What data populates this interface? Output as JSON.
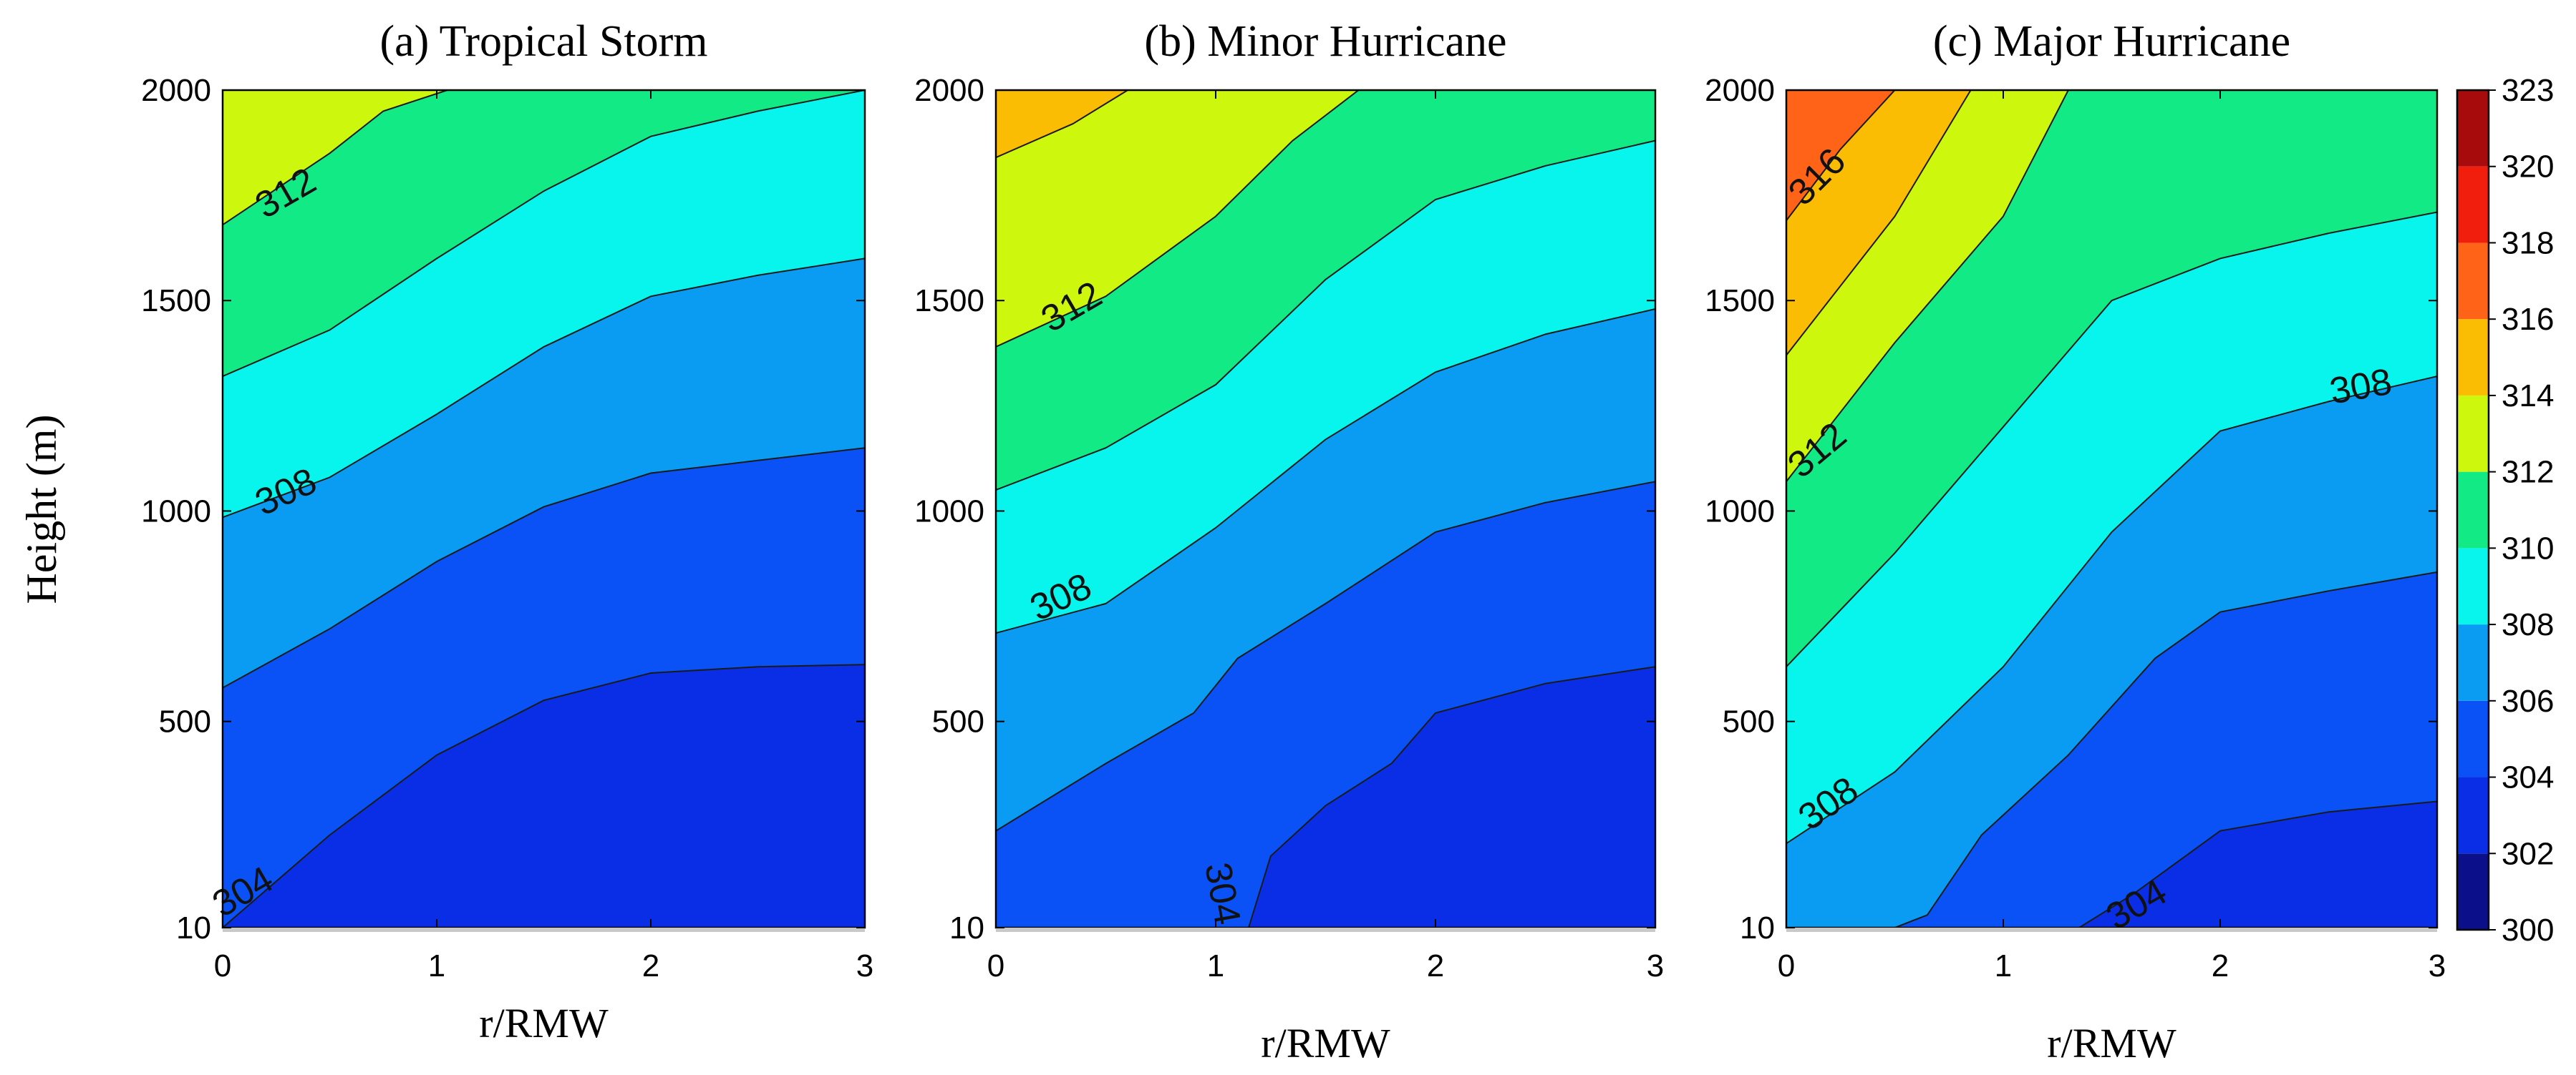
{
  "figure": {
    "ylabel": "Height (m)",
    "colorbar": {
      "ticks": [
        300,
        302,
        304,
        306,
        308,
        310,
        312,
        314,
        316,
        318,
        320,
        323
      ],
      "bins": [
        {
          "lo": 300,
          "hi": 302,
          "color": "#0c0f8a"
        },
        {
          "lo": 302,
          "hi": 304,
          "color": "#0a2ee6"
        },
        {
          "lo": 304,
          "hi": 306,
          "color": "#0a52f5"
        },
        {
          "lo": 306,
          "hi": 308,
          "color": "#0a9cf3"
        },
        {
          "lo": 308,
          "hi": 310,
          "color": "#07f5ec"
        },
        {
          "lo": 310,
          "hi": 312,
          "color": "#12ea86"
        },
        {
          "lo": 312,
          "hi": 314,
          "color": "#cdf80d"
        },
        {
          "lo": 314,
          "hi": 316,
          "color": "#fbbd03"
        },
        {
          "lo": 316,
          "hi": 318,
          "color": "#ff6318"
        },
        {
          "lo": 318,
          "hi": 320,
          "color": "#f21e0d"
        },
        {
          "lo": 320,
          "hi": 323,
          "color": "#a80b0b"
        }
      ]
    }
  },
  "chart_data": [
    {
      "type": "contour",
      "title": "(a) Tropical Storm",
      "xlabel": "r/RMW",
      "ylabel": "Height (m)",
      "xlim": [
        0,
        3
      ],
      "ylim": [
        10,
        2000
      ],
      "xticks": [
        "0",
        "1",
        "2",
        "3"
      ],
      "yticks": [
        "10",
        "500",
        "1000",
        "1500",
        "2000"
      ],
      "base_level": 302,
      "contours": [
        {
          "level": 304,
          "points": [
            [
              0,
              10
            ],
            [
              0.5,
              230
            ],
            [
              1,
              420
            ],
            [
              1.5,
              550
            ],
            [
              2,
              615
            ],
            [
              2.5,
              630
            ],
            [
              3,
              635
            ]
          ]
        },
        {
          "level": 306,
          "points": [
            [
              0,
              580
            ],
            [
              0.5,
              720
            ],
            [
              1,
              880
            ],
            [
              1.5,
              1010
            ],
            [
              2,
              1090
            ],
            [
              2.5,
              1120
            ],
            [
              3,
              1150
            ]
          ]
        },
        {
          "level": 308,
          "points": [
            [
              0,
              985
            ],
            [
              0.5,
              1080
            ],
            [
              1,
              1230
            ],
            [
              1.5,
              1390
            ],
            [
              2,
              1510
            ],
            [
              2.5,
              1560
            ],
            [
              3,
              1600
            ]
          ]
        },
        {
          "level": 310,
          "points": [
            [
              0,
              1320
            ],
            [
              0.5,
              1430
            ],
            [
              1,
              1600
            ],
            [
              1.5,
              1760
            ],
            [
              2,
              1890
            ],
            [
              2.5,
              1950
            ],
            [
              3,
              2000
            ]
          ]
        },
        {
          "level": 312,
          "points": [
            [
              0,
              1680
            ],
            [
              0.5,
              1850
            ],
            [
              0.75,
              1950
            ],
            [
              1.05,
              2000
            ]
          ]
        }
      ],
      "labels": [
        {
          "text": "304",
          "x": 0.1,
          "y": 90,
          "angle": -30
        },
        {
          "text": "308",
          "x": 0.3,
          "y": 1040,
          "angle": -25
        },
        {
          "text": "312",
          "x": 0.3,
          "y": 1750,
          "angle": -30
        }
      ]
    },
    {
      "type": "contour",
      "title": "(b) Minor Hurricane",
      "xlabel": "r/RMW",
      "ylabel": "Height (m)",
      "xlim": [
        0,
        3
      ],
      "ylim": [
        10,
        2000
      ],
      "xticks": [
        "0",
        "1",
        "2",
        "3"
      ],
      "yticks": [
        "10",
        "500",
        "1000",
        "1500",
        "2000"
      ],
      "base_level": 302,
      "contours": [
        {
          "level": 304,
          "points": [
            [
              1.15,
              10
            ],
            [
              1.25,
              180
            ],
            [
              1.5,
              300
            ],
            [
              1.8,
              400
            ],
            [
              2,
              520
            ],
            [
              2.5,
              590
            ],
            [
              3,
              630
            ]
          ]
        },
        {
          "level": 306,
          "points": [
            [
              0,
              240
            ],
            [
              0.5,
              400
            ],
            [
              0.9,
              520
            ],
            [
              1.1,
              650
            ],
            [
              1.5,
              780
            ],
            [
              2,
              950
            ],
            [
              2.5,
              1020
            ],
            [
              3,
              1070
            ]
          ]
        },
        {
          "level": 308,
          "points": [
            [
              0,
              710
            ],
            [
              0.5,
              780
            ],
            [
              1,
              960
            ],
            [
              1.5,
              1170
            ],
            [
              2,
              1330
            ],
            [
              2.5,
              1420
            ],
            [
              3,
              1480
            ]
          ]
        },
        {
          "level": 310,
          "points": [
            [
              0,
              1050
            ],
            [
              0.5,
              1150
            ],
            [
              1,
              1300
            ],
            [
              1.5,
              1550
            ],
            [
              2,
              1740
            ],
            [
              2.5,
              1820
            ],
            [
              3,
              1880
            ]
          ]
        },
        {
          "level": 312,
          "points": [
            [
              0,
              1390
            ],
            [
              0.5,
              1510
            ],
            [
              1,
              1700
            ],
            [
              1.35,
              1880
            ],
            [
              1.65,
              2000
            ]
          ]
        },
        {
          "level": 314,
          "points": [
            [
              0,
              1840
            ],
            [
              0.35,
              1920
            ],
            [
              0.6,
              2000
            ]
          ]
        }
      ],
      "labels": [
        {
          "text": "304",
          "x": 1.02,
          "y": 90,
          "angle": 80
        },
        {
          "text": "308",
          "x": 0.3,
          "y": 790,
          "angle": -25
        },
        {
          "text": "312",
          "x": 0.35,
          "y": 1480,
          "angle": -30
        }
      ]
    },
    {
      "type": "contour",
      "title": "(c) Major Hurricane",
      "xlabel": "r/RMW",
      "ylabel": "Height (m)",
      "xlim": [
        0,
        3
      ],
      "ylim": [
        10,
        2000
      ],
      "xticks": [
        "0",
        "1",
        "2",
        "3"
      ],
      "yticks": [
        "10",
        "500",
        "1000",
        "1500",
        "2000"
      ],
      "base_level": 302,
      "contours": [
        {
          "level": 304,
          "points": [
            [
              1.35,
              10
            ],
            [
              1.6,
              90
            ],
            [
              2,
              240
            ],
            [
              2.5,
              285
            ],
            [
              3,
              310
            ]
          ]
        },
        {
          "level": 306,
          "points": [
            [
              0.5,
              10
            ],
            [
              0.65,
              40
            ],
            [
              0.9,
              230
            ],
            [
              1.3,
              420
            ],
            [
              1.7,
              650
            ],
            [
              2,
              760
            ],
            [
              2.5,
              810
            ],
            [
              3,
              855
            ]
          ]
        },
        {
          "level": 308,
          "points": [
            [
              0,
              210
            ],
            [
              0.5,
              380
            ],
            [
              1,
              630
            ],
            [
              1.5,
              950
            ],
            [
              2,
              1190
            ],
            [
              2.5,
              1260
            ],
            [
              3,
              1320
            ]
          ]
        },
        {
          "level": 310,
          "points": [
            [
              0,
              630
            ],
            [
              0.5,
              900
            ],
            [
              1,
              1200
            ],
            [
              1.5,
              1500
            ],
            [
              2,
              1600
            ],
            [
              2.5,
              1660
            ],
            [
              3,
              1710
            ]
          ]
        },
        {
          "level": 312,
          "points": [
            [
              0,
              1070
            ],
            [
              0.5,
              1400
            ],
            [
              1,
              1700
            ],
            [
              1.3,
              2000
            ]
          ]
        },
        {
          "level": 314,
          "points": [
            [
              0,
              1370
            ],
            [
              0.5,
              1700
            ],
            [
              0.85,
              2000
            ]
          ]
        },
        {
          "level": 316,
          "points": [
            [
              0,
              1690
            ],
            [
              0.25,
              1860
            ],
            [
              0.5,
              2000
            ]
          ]
        }
      ],
      "labels": [
        {
          "text": "304",
          "x": 1.62,
          "y": 60,
          "angle": -30
        },
        {
          "text": "308",
          "x": 0.2,
          "y": 300,
          "angle": -35
        },
        {
          "text": "308",
          "x": 2.65,
          "y": 1290,
          "angle": -10
        },
        {
          "text": "312",
          "x": 0.15,
          "y": 1140,
          "angle": -40
        },
        {
          "text": "316",
          "x": 0.15,
          "y": 1790,
          "angle": -45
        }
      ]
    }
  ]
}
